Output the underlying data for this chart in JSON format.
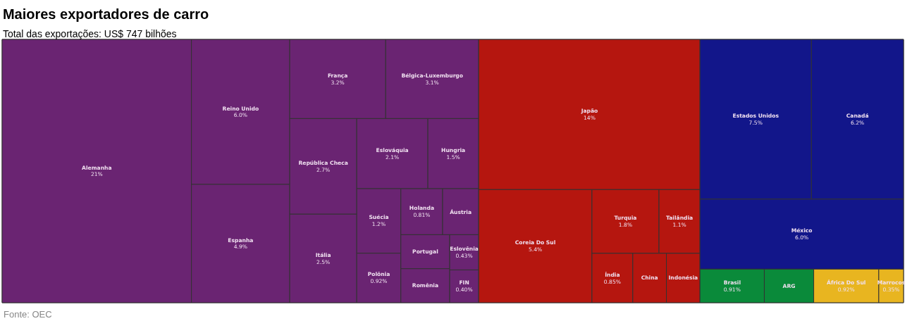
{
  "chart_data": {
    "type": "other",
    "title": "Maiores exportadores de carro",
    "subtitle": "Total das exportações: US$ 747 bilhões",
    "categories": [
      "Alemanha",
      "Reino Unido",
      "Espanha",
      "França",
      "Bélgica-Luxemburgo",
      "República Checa",
      "Itália",
      "Eslováquia",
      "Hungria",
      "Suécia",
      "Polônia",
      "Holanda",
      "Eslovênia",
      "FIN",
      "Áustria",
      "Portugal",
      "Romênia",
      "Japão",
      "Coreia Do Sul",
      "Turquia",
      "Tailândia",
      "China",
      "Índia",
      "Indonésia",
      "Estados Unidos",
      "Canadá",
      "México",
      "África Do Sul",
      "Marrocos",
      "Brasil",
      "ARG"
    ],
    "values": [
      21,
      6.0,
      4.9,
      3.2,
      3.1,
      2.7,
      2.5,
      2.1,
      1.5,
      1.2,
      0.92,
      0.81,
      0.43,
      0.4,
      null,
      null,
      null,
      14,
      5.4,
      1.8,
      1.1,
      null,
      0.85,
      null,
      7.5,
      6.2,
      6.0,
      0.92,
      0.35,
      0.91,
      null
    ],
    "value_labels": [
      "21%",
      "6.0%",
      "4.9%",
      "3.2%",
      "3.1%",
      "2.7%",
      "2.5%",
      "2.1%",
      "1.5%",
      "1.2%",
      "0.92%",
      "0.81%",
      "0.43%",
      "0.40%",
      null,
      null,
      null,
      "14%",
      "5.4%",
      "1.8%",
      "1.1%",
      null,
      "0.85%",
      null,
      "7.5%",
      "6.2%",
      "6.0%",
      "0.92%",
      "0.35%",
      "0.91%",
      null
    ],
    "colors": [
      "#6a2472",
      "#6a2472",
      "#6a2472",
      "#6a2472",
      "#6a2472",
      "#6a2472",
      "#6a2472",
      "#6a2472",
      "#6a2472",
      "#6a2472",
      "#6a2472",
      "#6a2472",
      "#6a2472",
      "#6a2472",
      "#6a2472",
      "#6a2472",
      "#6a2472",
      "#b5160f",
      "#b5160f",
      "#b5160f",
      "#b5160f",
      "#b5160f",
      "#b5160f",
      "#b5160f",
      "#12168a",
      "#12168a",
      "#12168a",
      "#e8b520",
      "#e8b520",
      "#0a8a3a",
      "#0a8a3a"
    ],
    "annotations": [
      "Fonte: OEC"
    ]
  }
}
